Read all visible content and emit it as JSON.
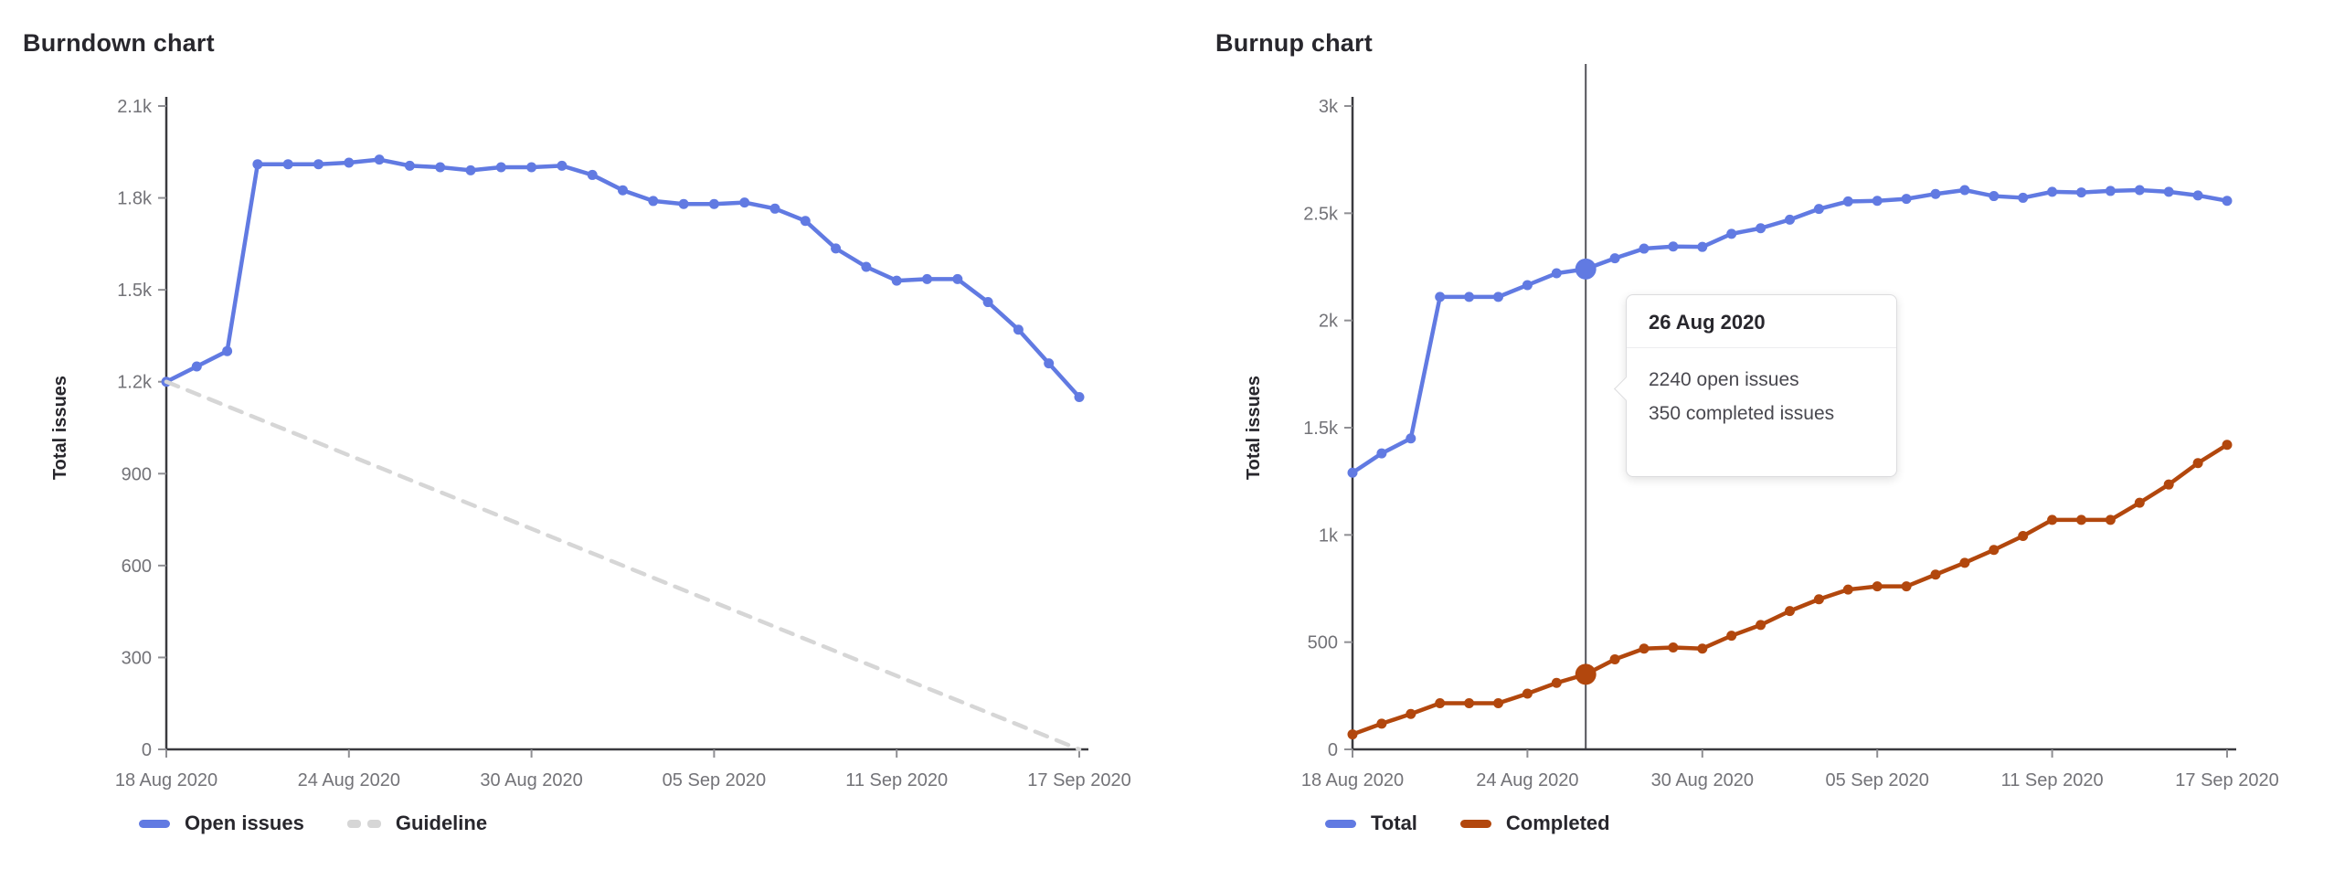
{
  "accent_colors": {
    "line_blue": "#617ae2",
    "line_orange": "#b2470d",
    "guideline_gray": "#d6d6d6",
    "axis_dark": "#3a3a3f",
    "tick_text_gray": "#737378",
    "hover_line_gray": "#54545a"
  },
  "chart_data": [
    {
      "type": "line",
      "title": "Burndown chart",
      "xlabel": "",
      "ylabel": "Total issues",
      "x_tick_labels": [
        "18 Aug 2020",
        "24 Aug 2020",
        "30 Aug 2020",
        "05 Sep 2020",
        "11 Sep 2020",
        "17 Sep 2020"
      ],
      "x_tick_day_indices": [
        0,
        6,
        12,
        18,
        24,
        30
      ],
      "x_range_days": 31,
      "y_tick_labels": [
        "0",
        "300",
        "600",
        "900",
        "1.2k",
        "1.5k",
        "1.8k",
        "2.1k"
      ],
      "y_tick_step": 300,
      "ylim": [
        0,
        2100
      ],
      "grid": false,
      "legend_position": "bottom-left",
      "series": [
        {
          "name": "Open issues",
          "color": "#617ae2",
          "style": "solid",
          "markers": true,
          "values": [
            1200,
            1250,
            1300,
            1910,
            1910,
            1910,
            1915,
            1925,
            1905,
            1900,
            1890,
            1900,
            1900,
            1905,
            1875,
            1825,
            1790,
            1780,
            1780,
            1785,
            1765,
            1725,
            1635,
            1575,
            1530,
            1535,
            1535,
            1460,
            1370,
            1260,
            1150
          ]
        },
        {
          "name": "Guideline",
          "color": "#d6d6d6",
          "style": "dashed",
          "markers": false,
          "endpoints": [
            1200,
            0
          ]
        }
      ]
    },
    {
      "type": "line",
      "title": "Burnup chart",
      "xlabel": "",
      "ylabel": "Total issues",
      "x_tick_labels": [
        "18 Aug 2020",
        "24 Aug 2020",
        "30 Aug 2020",
        "05 Sep 2020",
        "11 Sep 2020",
        "17 Sep 2020"
      ],
      "x_tick_day_indices": [
        0,
        6,
        12,
        18,
        24,
        30
      ],
      "x_range_days": 31,
      "y_tick_labels": [
        "0",
        "500",
        "1k",
        "1.5k",
        "2k",
        "2.5k",
        "3k"
      ],
      "y_tick_step": 500,
      "ylim": [
        0,
        3000
      ],
      "grid": false,
      "legend_position": "bottom-left",
      "series": [
        {
          "name": "Total",
          "color": "#617ae2",
          "style": "solid",
          "markers": true,
          "values": [
            1290,
            1380,
            1450,
            2110,
            2110,
            2110,
            2165,
            2220,
            2240,
            2290,
            2335,
            2345,
            2343,
            2404,
            2430,
            2470,
            2520,
            2555,
            2558,
            2567,
            2590,
            2608,
            2580,
            2572,
            2600,
            2597,
            2604,
            2608,
            2600,
            2583,
            2558
          ]
        },
        {
          "name": "Completed",
          "color": "#b2470d",
          "style": "solid",
          "markers": true,
          "values": [
            70,
            120,
            165,
            215,
            215,
            215,
            260,
            310,
            350,
            420,
            470,
            475,
            470,
            530,
            580,
            645,
            700,
            745,
            760,
            760,
            815,
            870,
            930,
            995,
            1070,
            1070,
            1070,
            1150,
            1235,
            1335,
            1420
          ]
        }
      ],
      "hover": {
        "day_index": 8,
        "highlighted_values": {
          "Total": 2240,
          "Completed": 350
        }
      },
      "tooltip": {
        "title": "26 Aug 2020",
        "lines": [
          "2240 open issues",
          "350 completed issues"
        ]
      }
    }
  ]
}
